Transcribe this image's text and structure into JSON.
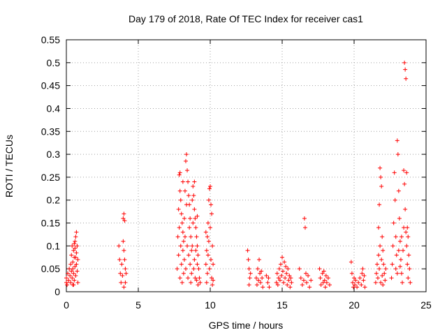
{
  "chart_data": {
    "type": "scatter",
    "title": "Day 179 of 2018, Rate Of TEC Index for receiver cas1",
    "xlabel": "GPS time / hours",
    "ylabel": "ROTI / TECUs",
    "xlim": [
      0,
      25
    ],
    "ylim": [
      0,
      0.55
    ],
    "x_ticks": [
      0,
      5,
      10,
      15,
      20,
      25
    ],
    "x_tick_labels": [
      "0",
      "5",
      "10",
      "15",
      "20",
      "25"
    ],
    "y_ticks": [
      0,
      0.05,
      0.1,
      0.15,
      0.2,
      0.25,
      0.3,
      0.35,
      0.4,
      0.45,
      0.5,
      0.55
    ],
    "y_tick_labels": [
      "0",
      "0.05",
      "0.1",
      "0.15",
      "0.2",
      "0.25",
      "0.3",
      "0.35",
      "0.4",
      "0.45",
      "0.5",
      "0.55"
    ],
    "grid": true,
    "marker": "+",
    "color": "#ff0000",
    "series": [
      {
        "name": "ROTI",
        "points": [
          [
            0.0,
            0.02
          ],
          [
            0.0,
            0.03
          ],
          [
            0.05,
            0.015
          ],
          [
            0.1,
            0.04
          ],
          [
            0.15,
            0.025
          ],
          [
            0.2,
            0.05
          ],
          [
            0.25,
            0.035
          ],
          [
            0.3,
            0.06
          ],
          [
            0.3,
            0.02
          ],
          [
            0.35,
            0.08
          ],
          [
            0.35,
            0.045
          ],
          [
            0.4,
            0.03
          ],
          [
            0.4,
            0.1
          ],
          [
            0.45,
            0.065
          ],
          [
            0.45,
            0.015
          ],
          [
            0.5,
            0.09
          ],
          [
            0.5,
            0.04
          ],
          [
            0.55,
            0.075
          ],
          [
            0.55,
            0.025
          ],
          [
            0.6,
            0.11
          ],
          [
            0.6,
            0.055
          ],
          [
            0.65,
            0.12
          ],
          [
            0.65,
            0.035
          ],
          [
            0.7,
            0.13
          ],
          [
            0.7,
            0.085
          ],
          [
            0.75,
            0.1
          ],
          [
            0.75,
            0.045
          ],
          [
            0.8,
            0.07
          ],
          [
            0.8,
            0.02
          ],
          [
            0.7,
            0.06
          ],
          [
            0.6,
            0.095
          ],
          [
            0.5,
            0.015
          ],
          [
            0.45,
            0.05
          ],
          [
            0.55,
            0.105
          ],
          [
            0.65,
            0.075
          ],
          [
            3.65,
            0.1
          ],
          [
            3.7,
            0.07
          ],
          [
            3.75,
            0.04
          ],
          [
            3.8,
            0.02
          ],
          [
            3.85,
            0.06
          ],
          [
            3.9,
            0.035
          ],
          [
            3.95,
            0.16
          ],
          [
            3.95,
            0.11
          ],
          [
            4.0,
            0.17
          ],
          [
            4.0,
            0.09
          ],
          [
            4.05,
            0.155
          ],
          [
            4.05,
            0.07
          ],
          [
            4.1,
            0.05
          ],
          [
            4.1,
            0.02
          ],
          [
            4.15,
            0.04
          ],
          [
            4.0,
            0.01
          ],
          [
            7.7,
            0.05
          ],
          [
            7.75,
            0.12
          ],
          [
            7.8,
            0.18
          ],
          [
            7.8,
            0.08
          ],
          [
            7.85,
            0.255
          ],
          [
            7.85,
            0.14
          ],
          [
            7.9,
            0.26
          ],
          [
            7.9,
            0.03
          ],
          [
            7.95,
            0.2
          ],
          [
            7.95,
            0.1
          ],
          [
            8.0,
            0.17
          ],
          [
            8.0,
            0.06
          ],
          [
            8.05,
            0.15
          ],
          [
            8.05,
            0.02
          ],
          [
            8.1,
            0.13
          ],
          [
            8.1,
            0.09
          ],
          [
            8.15,
            0.11
          ],
          [
            8.15,
            0.04
          ],
          [
            8.2,
            0.16
          ],
          [
            8.2,
            0.07
          ],
          [
            8.25,
            0.22
          ],
          [
            8.25,
            0.12
          ],
          [
            8.3,
            0.285
          ],
          [
            8.3,
            0.05
          ],
          [
            8.35,
            0.3
          ],
          [
            8.35,
            0.19
          ],
          [
            8.4,
            0.265
          ],
          [
            8.4,
            0.1
          ],
          [
            8.45,
            0.24
          ],
          [
            8.45,
            0.03
          ],
          [
            8.5,
            0.21
          ],
          [
            8.5,
            0.08
          ],
          [
            8.55,
            0.19
          ],
          [
            8.55,
            0.14
          ],
          [
            8.6,
            0.16
          ],
          [
            8.6,
            0.06
          ],
          [
            8.65,
            0.12
          ],
          [
            8.65,
            0.02
          ],
          [
            8.7,
            0.09
          ],
          [
            8.7,
            0.04
          ],
          [
            8.75,
            0.2
          ],
          [
            8.75,
            0.1
          ],
          [
            8.8,
            0.23
          ],
          [
            8.8,
            0.15
          ],
          [
            8.85,
            0.21
          ],
          [
            8.85,
            0.05
          ],
          [
            8.9,
            0.18
          ],
          [
            8.9,
            0.07
          ],
          [
            8.95,
            0.16
          ],
          [
            8.95,
            0.03
          ],
          [
            9.0,
            0.14
          ],
          [
            9.0,
            0.09
          ],
          [
            9.05,
            0.12
          ],
          [
            9.05,
            0.025
          ],
          [
            9.1,
            0.1
          ],
          [
            9.1,
            0.06
          ],
          [
            9.15,
            0.08
          ],
          [
            9.15,
            0.015
          ],
          [
            9.2,
            0.05
          ],
          [
            9.25,
            0.03
          ],
          [
            9.3,
            0.02
          ],
          [
            7.9,
            0.22
          ],
          [
            8.1,
            0.24
          ],
          [
            8.9,
            0.24
          ],
          [
            9.1,
            0.165
          ],
          [
            9.7,
            0.13
          ],
          [
            9.7,
            0.06
          ],
          [
            9.75,
            0.09
          ],
          [
            9.75,
            0.02
          ],
          [
            9.8,
            0.12
          ],
          [
            9.8,
            0.04
          ],
          [
            9.85,
            0.15
          ],
          [
            9.85,
            0.08
          ],
          [
            9.9,
            0.2
          ],
          [
            9.9,
            0.11
          ],
          [
            9.95,
            0.225
          ],
          [
            9.95,
            0.05
          ],
          [
            10.0,
            0.23
          ],
          [
            10.0,
            0.14
          ],
          [
            10.05,
            0.19
          ],
          [
            10.05,
            0.07
          ],
          [
            10.1,
            0.17
          ],
          [
            10.1,
            0.03
          ],
          [
            10.15,
            0.1
          ],
          [
            10.15,
            0.015
          ],
          [
            10.2,
            0.06
          ],
          [
            10.2,
            0.025
          ],
          [
            12.6,
            0.09
          ],
          [
            12.65,
            0.07
          ],
          [
            12.7,
            0.05
          ],
          [
            12.75,
            0.03
          ],
          [
            12.7,
            0.015
          ],
          [
            12.8,
            0.04
          ],
          [
            13.2,
            0.03
          ],
          [
            13.25,
            0.015
          ],
          [
            13.3,
            0.05
          ],
          [
            13.35,
            0.025
          ],
          [
            13.4,
            0.07
          ],
          [
            13.45,
            0.04
          ],
          [
            13.5,
            0.02
          ],
          [
            13.55,
            0.045
          ],
          [
            13.6,
            0.03
          ],
          [
            13.65,
            0.01
          ],
          [
            13.9,
            0.035
          ],
          [
            14.0,
            0.02
          ],
          [
            14.05,
            0.03
          ],
          [
            14.1,
            0.01
          ],
          [
            14.6,
            0.02
          ],
          [
            14.65,
            0.04
          ],
          [
            14.7,
            0.015
          ],
          [
            14.75,
            0.03
          ],
          [
            14.8,
            0.05
          ],
          [
            14.85,
            0.025
          ],
          [
            14.9,
            0.06
          ],
          [
            14.95,
            0.035
          ],
          [
            15.0,
            0.075
          ],
          [
            15.05,
            0.045
          ],
          [
            15.1,
            0.02
          ],
          [
            15.15,
            0.065
          ],
          [
            15.2,
            0.03
          ],
          [
            15.25,
            0.055
          ],
          [
            15.3,
            0.04
          ],
          [
            15.35,
            0.015
          ],
          [
            15.4,
            0.05
          ],
          [
            15.45,
            0.025
          ],
          [
            15.5,
            0.035
          ],
          [
            15.55,
            0.01
          ],
          [
            15.6,
            0.03
          ],
          [
            15.65,
            0.02
          ],
          [
            16.2,
            0.05
          ],
          [
            16.3,
            0.03
          ],
          [
            16.4,
            0.015
          ],
          [
            16.5,
            0.025
          ],
          [
            16.55,
            0.16
          ],
          [
            16.6,
            0.14
          ],
          [
            16.65,
            0.04
          ],
          [
            16.7,
            0.02
          ],
          [
            16.8,
            0.035
          ],
          [
            16.9,
            0.01
          ],
          [
            17.0,
            0.025
          ],
          [
            17.6,
            0.05
          ],
          [
            17.65,
            0.03
          ],
          [
            17.7,
            0.015
          ],
          [
            17.8,
            0.04
          ],
          [
            17.85,
            0.02
          ],
          [
            17.9,
            0.045
          ],
          [
            17.95,
            0.025
          ],
          [
            18.0,
            0.01
          ],
          [
            18.05,
            0.035
          ],
          [
            18.1,
            0.02
          ],
          [
            18.2,
            0.03
          ],
          [
            18.3,
            0.015
          ],
          [
            19.8,
            0.065
          ],
          [
            19.85,
            0.04
          ],
          [
            19.9,
            0.02
          ],
          [
            19.95,
            0.01
          ],
          [
            20.0,
            0.03
          ],
          [
            20.05,
            0.015
          ],
          [
            20.1,
            0.025
          ],
          [
            20.2,
            0.01
          ],
          [
            20.3,
            0.02
          ],
          [
            20.4,
            0.03
          ],
          [
            20.5,
            0.015
          ],
          [
            20.55,
            0.04
          ],
          [
            20.6,
            0.05
          ],
          [
            20.65,
            0.025
          ],
          [
            20.7,
            0.035
          ],
          [
            20.75,
            0.01
          ],
          [
            21.5,
            0.02
          ],
          [
            21.55,
            0.04
          ],
          [
            21.6,
            0.06
          ],
          [
            21.65,
            0.03
          ],
          [
            21.7,
            0.08
          ],
          [
            21.7,
            0.14
          ],
          [
            21.75,
            0.19
          ],
          [
            21.75,
            0.05
          ],
          [
            21.8,
            0.27
          ],
          [
            21.8,
            0.1
          ],
          [
            21.85,
            0.25
          ],
          [
            21.85,
            0.02
          ],
          [
            21.9,
            0.23
          ],
          [
            21.9,
            0.07
          ],
          [
            21.95,
            0.12
          ],
          [
            21.95,
            0.035
          ],
          [
            22.0,
            0.09
          ],
          [
            22.0,
            0.015
          ],
          [
            22.05,
            0.06
          ],
          [
            22.1,
            0.04
          ],
          [
            22.15,
            0.025
          ],
          [
            22.2,
            0.05
          ],
          [
            22.6,
            0.03
          ],
          [
            22.65,
            0.06
          ],
          [
            22.7,
            0.1
          ],
          [
            22.75,
            0.15
          ],
          [
            22.8,
            0.26
          ],
          [
            22.85,
            0.2
          ],
          [
            22.9,
            0.12
          ],
          [
            22.95,
            0.08
          ],
          [
            23.0,
            0.33
          ],
          [
            23.05,
            0.3
          ],
          [
            23.1,
            0.22
          ],
          [
            23.15,
            0.16
          ],
          [
            23.2,
            0.11
          ],
          [
            23.25,
            0.07
          ],
          [
            23.3,
            0.04
          ],
          [
            23.35,
            0.02
          ],
          [
            23.4,
            0.09
          ],
          [
            23.45,
            0.265
          ],
          [
            23.45,
            0.14
          ],
          [
            23.5,
            0.5
          ],
          [
            23.5,
            0.235
          ],
          [
            23.55,
            0.485
          ],
          [
            23.55,
            0.18
          ],
          [
            23.6,
            0.465
          ],
          [
            23.6,
            0.13
          ],
          [
            23.65,
            0.26
          ],
          [
            23.65,
            0.1
          ],
          [
            23.7,
            0.14
          ],
          [
            23.7,
            0.06
          ],
          [
            23.75,
            0.12
          ],
          [
            23.75,
            0.03
          ],
          [
            23.8,
            0.08
          ],
          [
            23.85,
            0.05
          ],
          [
            23.9,
            0.02
          ],
          [
            22.9,
            0.05
          ],
          [
            23.0,
            0.04
          ],
          [
            23.1,
            0.09
          ],
          [
            23.2,
            0.055
          ],
          [
            23.3,
            0.12
          ]
        ]
      }
    ]
  }
}
